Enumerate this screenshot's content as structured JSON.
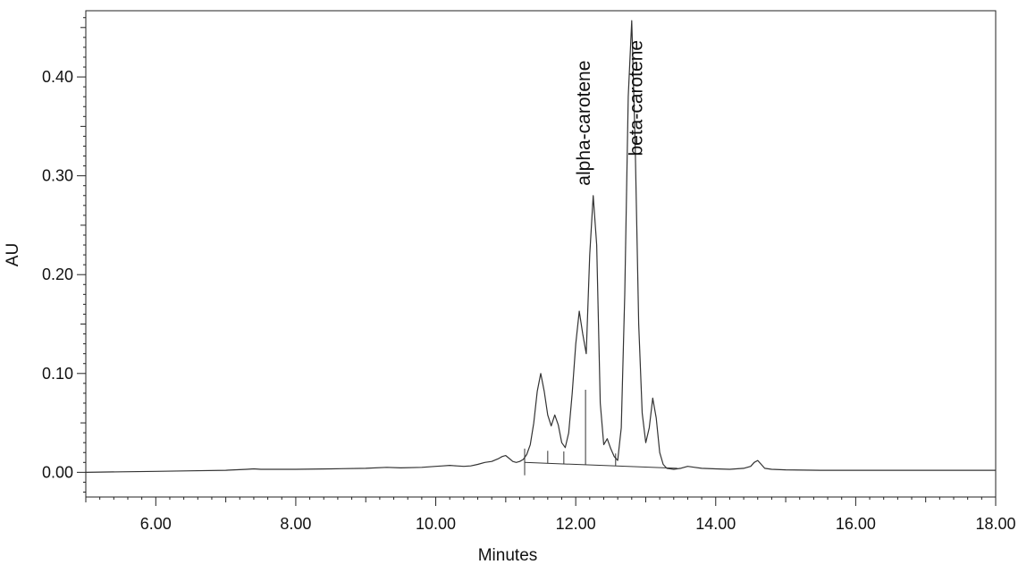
{
  "chart_data": {
    "type": "line",
    "title": "",
    "xlabel": "Minutes",
    "ylabel": "AU",
    "xlim": [
      5.0,
      18.0
    ],
    "ylim": [
      -0.025,
      0.467
    ],
    "x_ticks": [
      6.0,
      8.0,
      10.0,
      12.0,
      14.0,
      16.0,
      18.0
    ],
    "x_tick_labels": [
      "6.00",
      "8.00",
      "10.00",
      "12.00",
      "14.00",
      "16.00",
      "18.00"
    ],
    "y_ticks": [
      0.0,
      0.1,
      0.2,
      0.3,
      0.4
    ],
    "y_tick_labels": [
      "0.00",
      "0.10",
      "0.20",
      "0.30",
      "0.40"
    ],
    "grid": false,
    "legend": "none",
    "line_color": "#333333",
    "series": [
      {
        "x": [
          5.0,
          5.5,
          6.0,
          6.5,
          7.0,
          7.3,
          7.4,
          7.5,
          8.0,
          8.5,
          9.0,
          9.3,
          9.5,
          9.8,
          10.0,
          10.1,
          10.2,
          10.3,
          10.4,
          10.5,
          10.6,
          10.7,
          10.8,
          10.9,
          10.95,
          11.0,
          11.05,
          11.1,
          11.15,
          11.2,
          11.25,
          11.3,
          11.35,
          11.4,
          11.45,
          11.5,
          11.55,
          11.6,
          11.65,
          11.7,
          11.75,
          11.8,
          11.85,
          11.9,
          11.95,
          12.0,
          12.05,
          12.1,
          12.15,
          12.2,
          12.25,
          12.3,
          12.35,
          12.4,
          12.45,
          12.5,
          12.55,
          12.6,
          12.65,
          12.7,
          12.75,
          12.8,
          12.85,
          12.9,
          12.95,
          13.0,
          13.05,
          13.1,
          13.15,
          13.2,
          13.25,
          13.3,
          13.4,
          13.5,
          13.6,
          13.7,
          13.8,
          14.0,
          14.2,
          14.4,
          14.5,
          14.55,
          14.6,
          14.65,
          14.7,
          14.8,
          15.0,
          15.5,
          16.0,
          16.5,
          17.0,
          17.5,
          18.0
        ],
        "y": [
          0.0,
          0.0005,
          0.001,
          0.0015,
          0.002,
          0.003,
          0.0035,
          0.003,
          0.003,
          0.0035,
          0.004,
          0.005,
          0.0045,
          0.005,
          0.006,
          0.0065,
          0.007,
          0.0065,
          0.006,
          0.0065,
          0.008,
          0.01,
          0.011,
          0.014,
          0.016,
          0.017,
          0.014,
          0.011,
          0.01,
          0.011,
          0.013,
          0.018,
          0.028,
          0.05,
          0.082,
          0.1,
          0.082,
          0.058,
          0.047,
          0.058,
          0.048,
          0.03,
          0.025,
          0.04,
          0.08,
          0.13,
          0.163,
          0.14,
          0.12,
          0.22,
          0.28,
          0.23,
          0.07,
          0.028,
          0.034,
          0.024,
          0.016,
          0.012,
          0.045,
          0.18,
          0.38,
          0.457,
          0.33,
          0.15,
          0.06,
          0.03,
          0.045,
          0.075,
          0.055,
          0.02,
          0.008,
          0.004,
          0.003,
          0.004,
          0.006,
          0.005,
          0.004,
          0.0035,
          0.003,
          0.004,
          0.006,
          0.01,
          0.012,
          0.008,
          0.004,
          0.003,
          0.0025,
          0.002,
          0.002,
          0.002,
          0.002,
          0.002,
          0.002
        ]
      }
    ],
    "integration_markers_x": [
      11.27,
      11.6,
      11.83,
      12.14,
      12.57
    ],
    "annotations": [
      {
        "text": "alpha-carotene",
        "x": 12.2,
        "y": 0.29
      },
      {
        "text": "beta-carotene",
        "x": 12.95,
        "y": 0.32
      }
    ]
  }
}
